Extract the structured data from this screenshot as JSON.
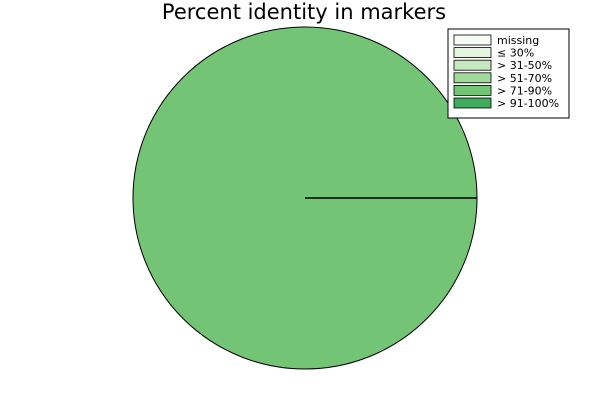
{
  "chart_data": {
    "type": "pie",
    "title": "Percent identity in markers",
    "categories": [
      "missing",
      "≤ 30%",
      "> 31-50%",
      "> 51-70%",
      "> 71-90%",
      "> 91-100%"
    ],
    "values": [
      0,
      0,
      0,
      0,
      100,
      0
    ],
    "colors": [
      "#f7fcf5",
      "#e5f5e0",
      "#c7e9c0",
      "#a1d99b",
      "#74c476",
      "#41ab5d"
    ],
    "legend": {
      "position": "top-right",
      "entries": [
        "missing",
        "≤ 30%",
        "> 31-50%",
        "> 51-70%",
        "> 71-90%",
        "> 91-100%"
      ]
    }
  }
}
